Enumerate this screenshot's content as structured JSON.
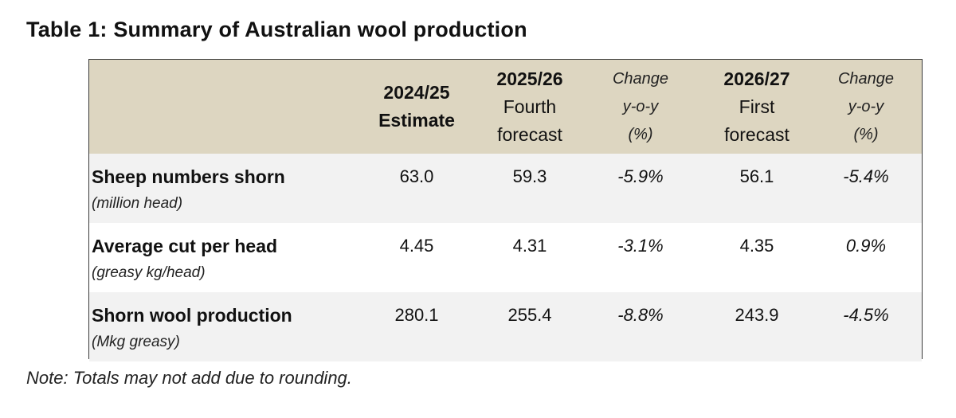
{
  "title": "Table 1: Summary of Australian wool production",
  "header": {
    "col1": [
      "2024/25",
      "Estimate"
    ],
    "col2": [
      "2025/26",
      "Fourth",
      "forecast"
    ],
    "col3": [
      "Change",
      "y-o-y",
      "(%)"
    ],
    "col4": [
      "2026/27",
      "First",
      "forecast"
    ],
    "col5": [
      "Change",
      "y-o-y",
      "(%)"
    ]
  },
  "rows": [
    {
      "label": "Sheep numbers shorn",
      "unit": "(million head)",
      "values": [
        "63.0",
        "59.3",
        "-5.9%",
        "56.1",
        "-5.4%"
      ]
    },
    {
      "label": "Average cut per head",
      "unit": "(greasy kg/head)",
      "values": [
        "4.45",
        "4.31",
        "-3.1%",
        "4.35",
        "0.9%"
      ]
    },
    {
      "label": "Shorn wool production",
      "unit": "(Mkg greasy)",
      "values": [
        "280.1",
        "255.4",
        "-8.8%",
        "243.9",
        "-4.5%"
      ]
    }
  ],
  "note": "Note: Totals may not add due to rounding.",
  "colors": {
    "header_bg": "#ddd6c1",
    "shaded_row_bg": "#f2f2f2",
    "border": "#3a3a3a"
  }
}
